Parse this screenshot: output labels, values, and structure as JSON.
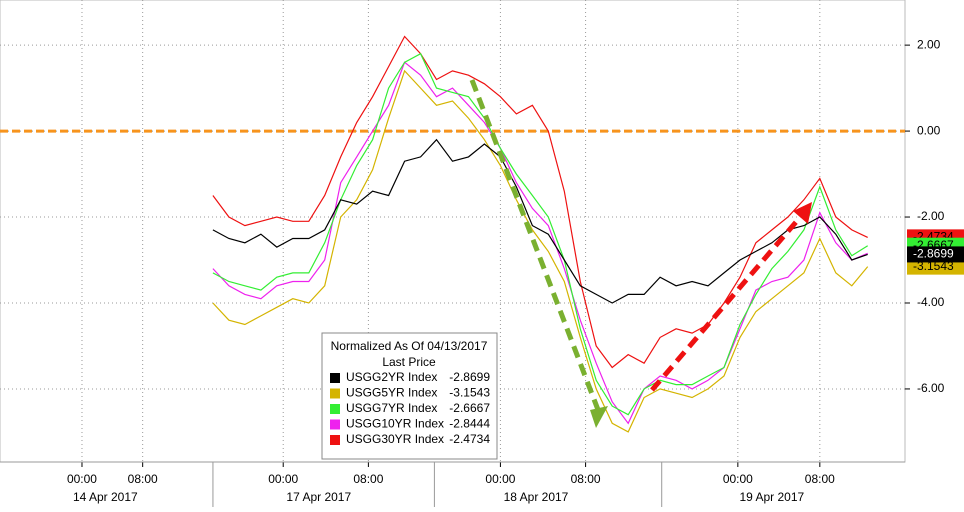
{
  "chart_data": {
    "type": "line",
    "x": [
      20,
      21.5,
      23,
      24.5,
      26,
      27.5,
      29,
      30.5,
      32,
      33.5,
      35,
      36.5,
      38,
      39.5,
      41,
      42.5,
      44,
      45.5,
      47,
      48.5,
      50,
      51.5,
      53,
      54.5,
      56,
      57.5,
      59,
      60.5,
      62,
      63.5,
      65,
      66.5,
      68,
      69.5,
      71,
      72.5,
      74,
      75.5,
      77,
      78.5,
      80,
      81.5
    ],
    "xlim": [
      0,
      85
    ],
    "xticks": [
      {
        "value": 7.7,
        "label": "00:00"
      },
      {
        "value": 13.4,
        "label": "08:00"
      },
      {
        "value": 26.6,
        "label": "00:00"
      },
      {
        "value": 34.6,
        "label": "08:00"
      },
      {
        "value": 47,
        "label": "00:00"
      },
      {
        "value": 55,
        "label": "08:00"
      },
      {
        "value": 69.3,
        "label": "00:00"
      },
      {
        "value": 77,
        "label": "08:00"
      }
    ],
    "date_labels": [
      "14 Apr 2017",
      "17 Apr 2017",
      "18 Apr 2017",
      "19 Apr 2017"
    ],
    "ylim": [
      -7.7,
      3.05
    ],
    "yticks": [
      {
        "value": 2,
        "label": "2.00"
      },
      {
        "value": 0,
        "label": "0.00"
      },
      {
        "value": -2,
        "label": "-2.00"
      },
      {
        "value": -4,
        "label": "-4.00"
      },
      {
        "value": -6,
        "label": "-6.00"
      }
    ],
    "grid": true,
    "reference_line": {
      "value": 0,
      "color": "#f7941d"
    },
    "legend_title": "Normalized As Of 04/13/2017",
    "legend_subtitle": "Last Price",
    "series": [
      {
        "name": "USGG2YR Index",
        "color": "#000000",
        "last": -2.8699,
        "values": [
          -2.3,
          -2.5,
          -2.6,
          -2.4,
          -2.7,
          -2.5,
          -2.5,
          -2.3,
          -1.6,
          -1.7,
          -1.4,
          -1.5,
          -0.7,
          -0.6,
          -0.2,
          -0.7,
          -0.6,
          -0.3,
          -0.6,
          -1.3,
          -2.2,
          -2.4,
          -3.0,
          -3.6,
          -3.8,
          -4.0,
          -3.8,
          -3.8,
          -3.4,
          -3.6,
          -3.5,
          -3.6,
          -3.3,
          -3.0,
          -2.8,
          -2.6,
          -2.3,
          -2.2,
          -2.0,
          -2.4,
          -3.0,
          -2.8699
        ]
      },
      {
        "name": "USGG5YR Index",
        "color": "#d4b400",
        "last": -3.1543,
        "values": [
          -4.0,
          -4.4,
          -4.5,
          -4.3,
          -4.1,
          -3.9,
          -4.0,
          -3.6,
          -2.0,
          -1.6,
          -0.9,
          0.3,
          1.4,
          1.0,
          0.6,
          0.7,
          0.3,
          -0.2,
          -0.8,
          -1.6,
          -2.3,
          -2.8,
          -3.5,
          -4.8,
          -6.0,
          -6.8,
          -7.0,
          -6.2,
          -6.0,
          -6.1,
          -6.2,
          -6.0,
          -5.7,
          -4.8,
          -4.2,
          -3.9,
          -3.6,
          -3.3,
          -2.5,
          -3.3,
          -3.6,
          -3.1543
        ]
      },
      {
        "name": "USGG7YR Index",
        "color": "#33ee33",
        "last": -2.6667,
        "values": [
          -3.3,
          -3.5,
          -3.6,
          -3.7,
          -3.4,
          -3.3,
          -3.3,
          -2.6,
          -1.6,
          -0.8,
          -0.2,
          1.0,
          1.6,
          1.8,
          1.0,
          0.9,
          0.8,
          0.3,
          -0.4,
          -1.0,
          -1.5,
          -2.0,
          -3.0,
          -4.6,
          -5.8,
          -6.4,
          -6.6,
          -6.0,
          -5.8,
          -5.9,
          -5.9,
          -5.7,
          -5.5,
          -4.5,
          -3.8,
          -3.2,
          -2.8,
          -2.3,
          -1.3,
          -2.3,
          -2.9,
          -2.6667
        ]
      },
      {
        "name": "USGG10YR Index",
        "color": "#ee22ee",
        "last": -2.8444,
        "values": [
          -3.2,
          -3.6,
          -3.8,
          -3.9,
          -3.6,
          -3.5,
          -3.5,
          -3.0,
          -1.2,
          -0.6,
          0.0,
          0.6,
          1.6,
          1.3,
          0.8,
          1.0,
          0.6,
          0.2,
          -0.4,
          -1.2,
          -1.8,
          -2.2,
          -3.2,
          -4.4,
          -5.4,
          -6.3,
          -6.8,
          -6.0,
          -5.7,
          -5.8,
          -6.0,
          -5.8,
          -5.5,
          -4.6,
          -3.7,
          -3.5,
          -3.4,
          -3.0,
          -1.9,
          -2.6,
          -3.0,
          -2.8444
        ]
      },
      {
        "name": "USGG30YR Index",
        "color": "#ee1111",
        "last": -2.4734,
        "values": [
          -1.5,
          -2.0,
          -2.2,
          -2.1,
          -2.0,
          -2.1,
          -2.1,
          -1.5,
          -0.6,
          0.2,
          0.8,
          1.5,
          2.2,
          1.8,
          1.2,
          1.4,
          1.3,
          1.1,
          0.8,
          0.4,
          0.6,
          0.0,
          -1.4,
          -3.5,
          -5.0,
          -5.5,
          -5.2,
          -5.4,
          -4.8,
          -4.6,
          -4.7,
          -4.5,
          -4.0,
          -3.4,
          -2.6,
          -2.3,
          -2.0,
          -1.6,
          -1.1,
          -2.0,
          -2.3,
          -2.4734
        ]
      }
    ]
  }
}
